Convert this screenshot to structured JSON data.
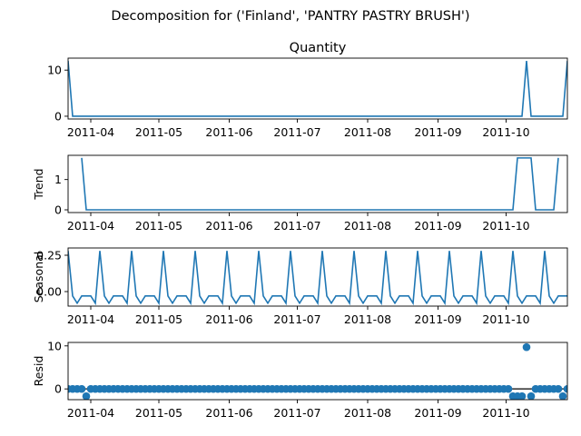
{
  "figure_title": "Decomposition for ('Finland', 'PANTRY PASTRY BRUSH')",
  "colors": {
    "series": "#1f77b4",
    "axis": "#000000",
    "background": "#ffffff"
  },
  "chart_data": [
    {
      "type": "line",
      "name": "observed",
      "title": "Quantity",
      "ylabel": "",
      "ylim": [
        -0.6,
        12.6
      ],
      "yticks": [
        0,
        10
      ],
      "x_start": "2011-03-22",
      "x_step_days": 2,
      "x_range_days": [
        0,
        220
      ],
      "xticks": [
        {
          "label": "2011-04",
          "day": 10
        },
        {
          "label": "2011-05",
          "day": 40
        },
        {
          "label": "2011-06",
          "day": 71
        },
        {
          "label": "2011-07",
          "day": 101
        },
        {
          "label": "2011-08",
          "day": 132
        },
        {
          "label": "2011-09",
          "day": 163
        },
        {
          "label": "2011-10",
          "day": 193
        }
      ],
      "sparse_values": {
        "0": 12,
        "101": 12,
        "110": 12
      },
      "default_value": 0,
      "count": 111
    },
    {
      "type": "line",
      "name": "trend",
      "title": "",
      "ylabel": "Trend",
      "ylim": [
        -0.09,
        1.8
      ],
      "yticks": [
        0,
        1
      ],
      "x_range_days": [
        0,
        220
      ],
      "trend_points": [
        {
          "i": 3,
          "v": 1.714
        },
        {
          "i": 4,
          "v": 0
        },
        {
          "i": 98,
          "v": 0
        },
        {
          "i": 99,
          "v": 1.714
        },
        {
          "i": 102,
          "v": 1.714
        },
        {
          "i": 103,
          "v": 0
        },
        {
          "i": 107,
          "v": 0
        },
        {
          "i": 108,
          "v": 1.714
        }
      ]
    },
    {
      "type": "line",
      "name": "seasonal",
      "title": "",
      "ylabel": "Seasonal",
      "ylim": [
        -0.1,
        0.3
      ],
      "yticks": [
        0.25,
        0.0
      ],
      "ytick_labels": [
        "0.25",
        "0.00"
      ],
      "x_range_days": [
        0,
        220
      ],
      "period_pattern": [
        0.28,
        -0.03,
        -0.08,
        -0.03,
        -0.03,
        -0.03,
        -0.08
      ],
      "count": 111
    },
    {
      "type": "scatter",
      "name": "resid",
      "title": "",
      "ylabel": "Resid",
      "ylim": [
        -2.5,
        10.8
      ],
      "yticks": [
        0,
        10
      ],
      "x_range_days": [
        0,
        220
      ],
      "baseline": 0,
      "sparse_values": {
        "4": -1.7,
        "98": -1.7,
        "99": -1.7,
        "100": -1.7,
        "101": 9.7,
        "102": -1.7,
        "109": -1.7
      },
      "default_value": 0,
      "count": 111
    }
  ]
}
